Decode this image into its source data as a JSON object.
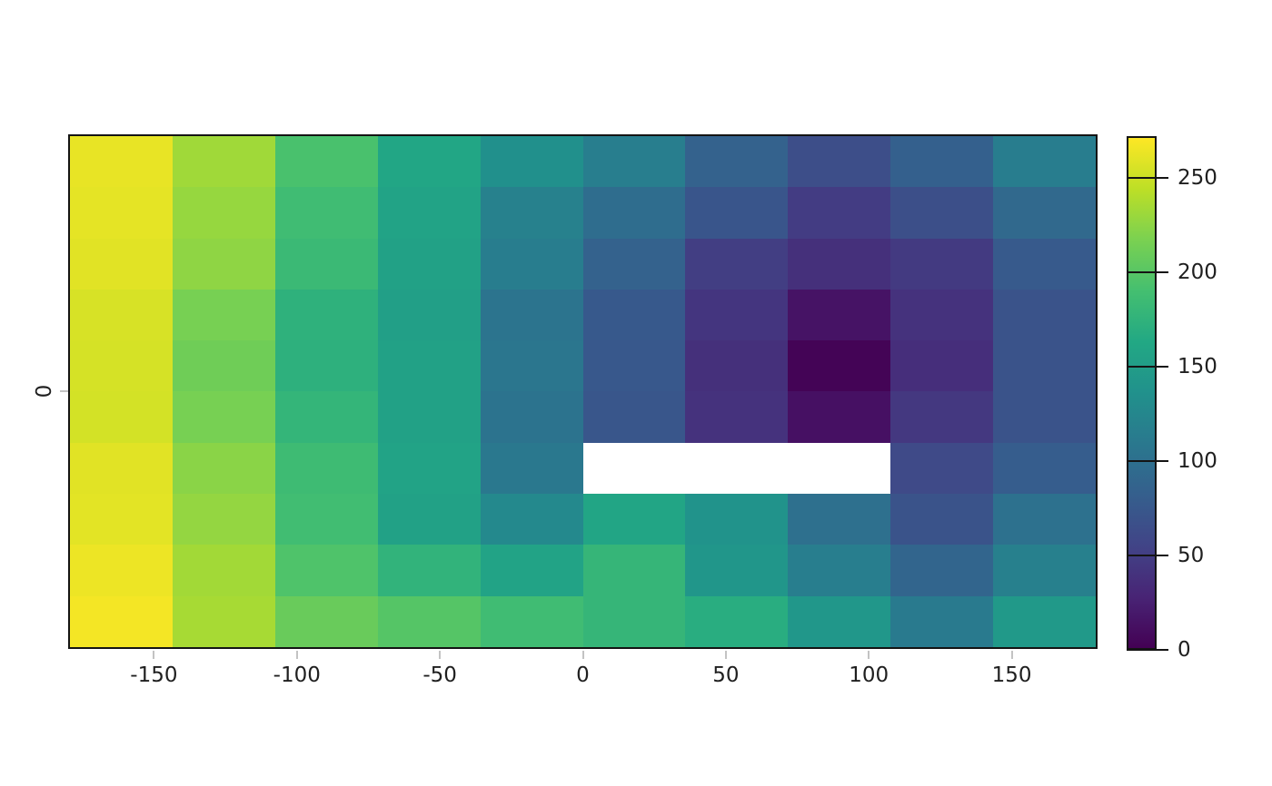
{
  "figure": {
    "background": "#ffffff",
    "border_color": "#141414",
    "tick_color": "#c3c3c3",
    "label_color": "#1f1f1f"
  },
  "axis": {
    "y_tick_label": "0"
  },
  "chart_data": {
    "type": "heatmap",
    "title": "",
    "xlabel": "",
    "ylabel": "",
    "xlim": [
      -180,
      180
    ],
    "ylim": [
      -90,
      90
    ],
    "x_tick_values": [
      -150,
      -100,
      -50,
      0,
      50,
      100,
      150
    ],
    "x_tick_labels": [
      "-150",
      "-100",
      "-50",
      "0",
      "50",
      "100",
      "150"
    ],
    "y_tick_values": [
      0
    ],
    "y_tick_labels": [
      "0"
    ],
    "x_cell_centers": [
      -162,
      -126,
      -90,
      -54,
      -18,
      18,
      54,
      90,
      126,
      162
    ],
    "y_cell_centers": [
      81,
      63,
      45,
      27,
      9,
      -9,
      -27,
      -45,
      -63,
      -81
    ],
    "values": [
      [
        263,
        233,
        193,
        161,
        135,
        115,
        85,
        64,
        83,
        114
      ],
      [
        262,
        229,
        187,
        157,
        119,
        97,
        72,
        48,
        65,
        92
      ],
      [
        260,
        226,
        183,
        155,
        114,
        85,
        49,
        37,
        46,
        77
      ],
      [
        256,
        216,
        174,
        153,
        104,
        76,
        42,
        14,
        39,
        70
      ],
      [
        255,
        212,
        173,
        155,
        107,
        75,
        37,
        2,
        36,
        70
      ],
      [
        254,
        216,
        178,
        155,
        103,
        73,
        39,
        12,
        44,
        70
      ],
      [
        260,
        224,
        186,
        157,
        109,
        null,
        null,
        null,
        60,
        80
      ],
      [
        261,
        228,
        188,
        155,
        127,
        160,
        138,
        100,
        70,
        101
      ],
      [
        265,
        234,
        196,
        176,
        157,
        179,
        142,
        115,
        88,
        118
      ],
      [
        268,
        236,
        209,
        199,
        187,
        179,
        169,
        143,
        111,
        145
      ]
    ],
    "missing_cells": [
      [
        6,
        5
      ],
      [
        6,
        6
      ],
      [
        6,
        7
      ]
    ],
    "missing_color": "#ffffff",
    "colormap": "viridis",
    "colormap_anchors": [
      "#440154",
      "#482475",
      "#414487",
      "#355f8d",
      "#2a788e",
      "#21918c",
      "#22a884",
      "#44bf70",
      "#7ad151",
      "#bddf26",
      "#fde725"
    ],
    "color_domain": [
      0,
      272
    ],
    "colorbar_tick_values": [
      0,
      50,
      100,
      150,
      200,
      250
    ],
    "colorbar_tick_labels": [
      "0",
      "50",
      "100",
      "150",
      "200",
      "250"
    ],
    "legend_position": "right",
    "grid": "off"
  }
}
